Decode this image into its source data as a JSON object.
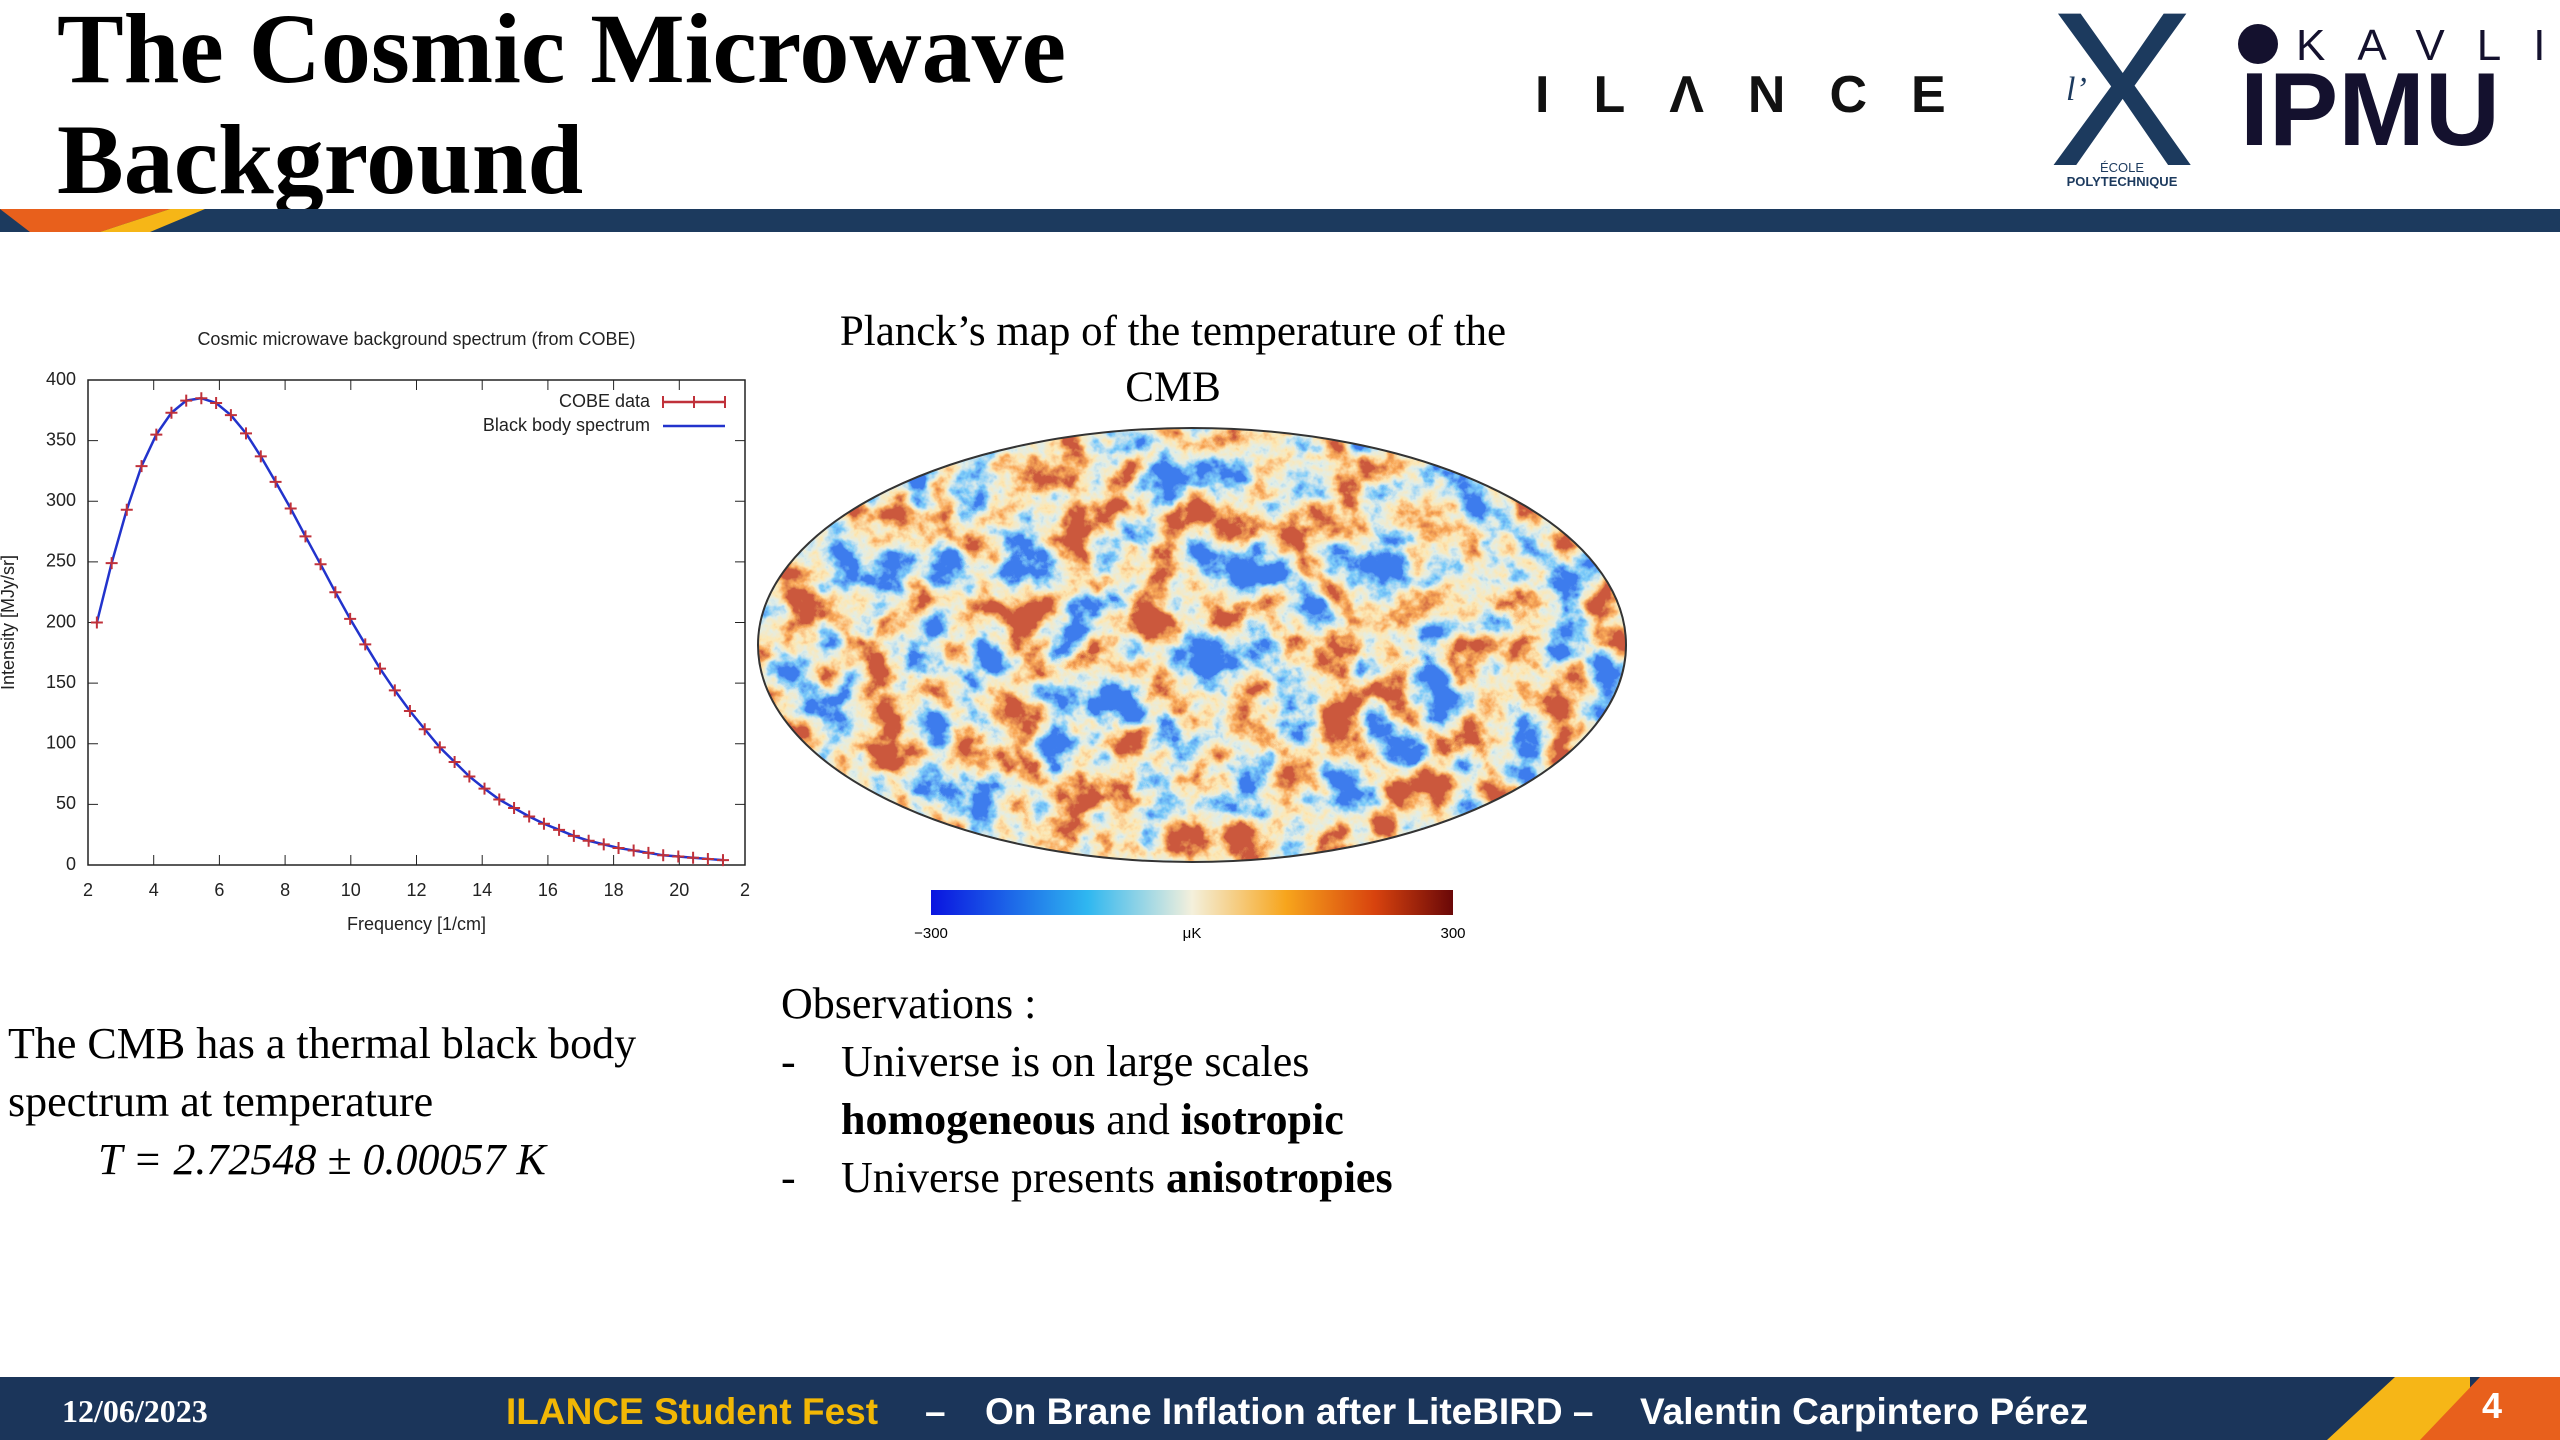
{
  "header": {
    "title_lines": [
      "The Cosmic Microwave",
      "Background"
    ],
    "logos": {
      "ilance": "ILΛNCE",
      "x_prefix": "l’",
      "x_letter": "X",
      "x_school": [
        "ÉCOLE",
        "POLYTECHNIQUE"
      ],
      "kavli": "KAVLI",
      "ipmu": "IPMU"
    }
  },
  "chart_data": {
    "type": "line",
    "title": "Cosmic microwave background spectrum (from COBE)",
    "x_label": "Frequency [1/cm]",
    "y_label": "Intensity [MJy/sr]",
    "x": [
      2.27,
      2.72,
      3.18,
      3.63,
      4.08,
      4.54,
      4.99,
      5.45,
      5.9,
      6.35,
      6.81,
      7.26,
      7.71,
      8.17,
      8.62,
      9.08,
      9.53,
      9.98,
      10.44,
      10.89,
      11.34,
      11.8,
      12.25,
      12.71,
      13.16,
      13.61,
      14.07,
      14.52,
      14.97,
      15.43,
      15.88,
      16.34,
      16.79,
      17.24,
      17.7,
      18.15,
      18.61,
      19.06,
      19.51,
      19.97,
      20.42,
      20.87,
      21.33
    ],
    "series": [
      {
        "name": "COBE data",
        "color": "#c0313a",
        "marker": "+",
        "values": [
          200,
          249,
          293,
          329,
          355,
          373,
          383,
          385,
          381,
          371,
          356,
          337,
          316,
          294,
          271,
          248,
          225,
          203,
          182,
          162,
          144,
          127,
          112,
          97,
          85,
          73,
          63,
          54,
          47,
          40,
          34,
          29,
          24,
          20,
          17,
          14,
          12,
          10,
          8,
          7,
          6,
          5,
          4
        ]
      },
      {
        "name": "Black body spectrum",
        "color": "#2233cc",
        "values": [
          200,
          249,
          293,
          329,
          355,
          373,
          383,
          385,
          381,
          371,
          356,
          337,
          316,
          294,
          271,
          248,
          225,
          203,
          182,
          162,
          144,
          127,
          112,
          97,
          85,
          73,
          63,
          54,
          47,
          40,
          34,
          29,
          24,
          20,
          17,
          14,
          12,
          10,
          8,
          7,
          6,
          5,
          4
        ]
      }
    ],
    "xlim": [
      2,
      22
    ],
    "xticks": [
      2,
      4,
      6,
      8,
      10,
      12,
      14,
      16,
      18,
      20,
      {
        "value": 22,
        "label": "2"
      }
    ],
    "ylim": [
      0,
      400
    ],
    "yticks": [
      0,
      50,
      100,
      150,
      200,
      250,
      300,
      350,
      400
    ],
    "legend": "top-right",
    "grid": false
  },
  "map": {
    "title_lines": [
      "Planck’s map of the temperature of the",
      "CMB"
    ],
    "colorbar": {
      "min_label": "−300",
      "unit": "μK",
      "max_label": "300"
    }
  },
  "left_text": {
    "lines": [
      "The CMB has a thermal black body",
      "spectrum at temperature"
    ],
    "equation": "T = 2.72548 ± 0.00057 K"
  },
  "observations": {
    "heading": "Observations :",
    "items": [
      {
        "bullet": "-",
        "lines": [
          [
            "Universe is on large scales"
          ],
          [
            "homogeneous",
            "and",
            "isotropic"
          ]
        ]
      },
      {
        "bullet": "-",
        "lines": [
          [
            "Universe presents",
            "anisotropies"
          ]
        ]
      }
    ]
  },
  "footer": {
    "date": "12/06/2023",
    "event": "ILANCE Student Fest",
    "separator": "–",
    "talk": "On Brane Inflation after LiteBIRD –",
    "author": "Valentin Carpintero Pérez",
    "page": "4"
  }
}
